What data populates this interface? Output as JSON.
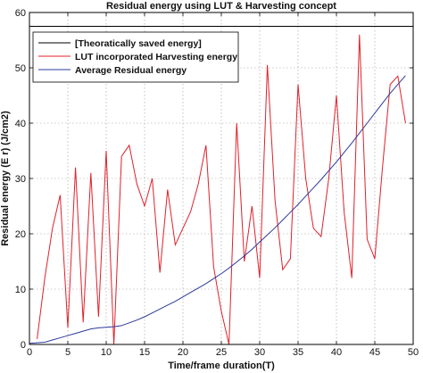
{
  "chart_data": {
    "type": "line",
    "title": "Residual energy using LUT & Harvesting concept",
    "xlabel": "Time/frame duration(T)",
    "ylabel": "Residual energy (E r) (J/cm2)",
    "xlim": [
      0,
      50
    ],
    "ylim": [
      0,
      60
    ],
    "xticks": [
      0,
      5,
      10,
      15,
      20,
      25,
      30,
      35,
      40,
      45,
      50
    ],
    "yticks": [
      0,
      10,
      20,
      30,
      40,
      50,
      60
    ],
    "grid": true,
    "legend_position": "top-left",
    "series": [
      {
        "name": "[Theoratically saved energy]",
        "color": "#000000",
        "x": [
          0,
          50
        ],
        "y": [
          57.5,
          57.5
        ]
      },
      {
        "name": "LUT incorporated Harvesting energy",
        "color": "#e0202a",
        "x": [
          1,
          2,
          3,
          4,
          5,
          6,
          7,
          8,
          9,
          10,
          11,
          12,
          13,
          14,
          15,
          16,
          17,
          18,
          19,
          20,
          21,
          22,
          23,
          24,
          25,
          26,
          27,
          28,
          29,
          30,
          31,
          32,
          33,
          34,
          35,
          36,
          37,
          38,
          39,
          40,
          41,
          42,
          43,
          44,
          45,
          46,
          47,
          48,
          49
        ],
        "y": [
          1,
          12,
          21,
          27,
          3,
          32,
          4,
          31,
          5,
          35,
          0,
          34,
          36,
          29,
          25,
          30,
          13,
          28,
          18,
          21,
          24,
          29,
          36,
          14,
          6,
          0,
          40,
          15,
          25,
          12,
          50.5,
          26,
          13.5,
          15.5,
          47,
          30,
          21,
          19.5,
          30,
          45,
          24,
          12,
          56,
          19,
          15.5,
          32,
          47,
          48.5,
          40
        ]
      },
      {
        "name": "Average Residual energy",
        "color": "#2b3a9c",
        "x": [
          0,
          1,
          2,
          3,
          4,
          5,
          6,
          7,
          8,
          9,
          10,
          11,
          12,
          13,
          14,
          15,
          16,
          17,
          18,
          19,
          20,
          21,
          22,
          23,
          24,
          25,
          26,
          27,
          28,
          29,
          30,
          31,
          32,
          33,
          34,
          35,
          36,
          37,
          38,
          39,
          40,
          41,
          42,
          43,
          44,
          45,
          46,
          47,
          48,
          49
        ],
        "y": [
          0.2,
          0.3,
          0.4,
          0.8,
          1.2,
          1.6,
          2.0,
          2.4,
          2.8,
          3.0,
          3.1,
          3.2,
          3.4,
          3.9,
          4.4,
          5.0,
          5.7,
          6.4,
          7.1,
          7.8,
          8.6,
          9.4,
          10.2,
          11.0,
          11.9,
          12.8,
          13.8,
          14.9,
          16.0,
          17.2,
          18.5,
          19.8,
          21.1,
          22.5,
          23.9,
          25.3,
          26.8,
          28.3,
          29.8,
          31.4,
          33.0,
          34.7,
          36.4,
          38.2,
          40.0,
          41.8,
          43.6,
          45.4,
          47.0,
          48.6
        ]
      }
    ]
  }
}
